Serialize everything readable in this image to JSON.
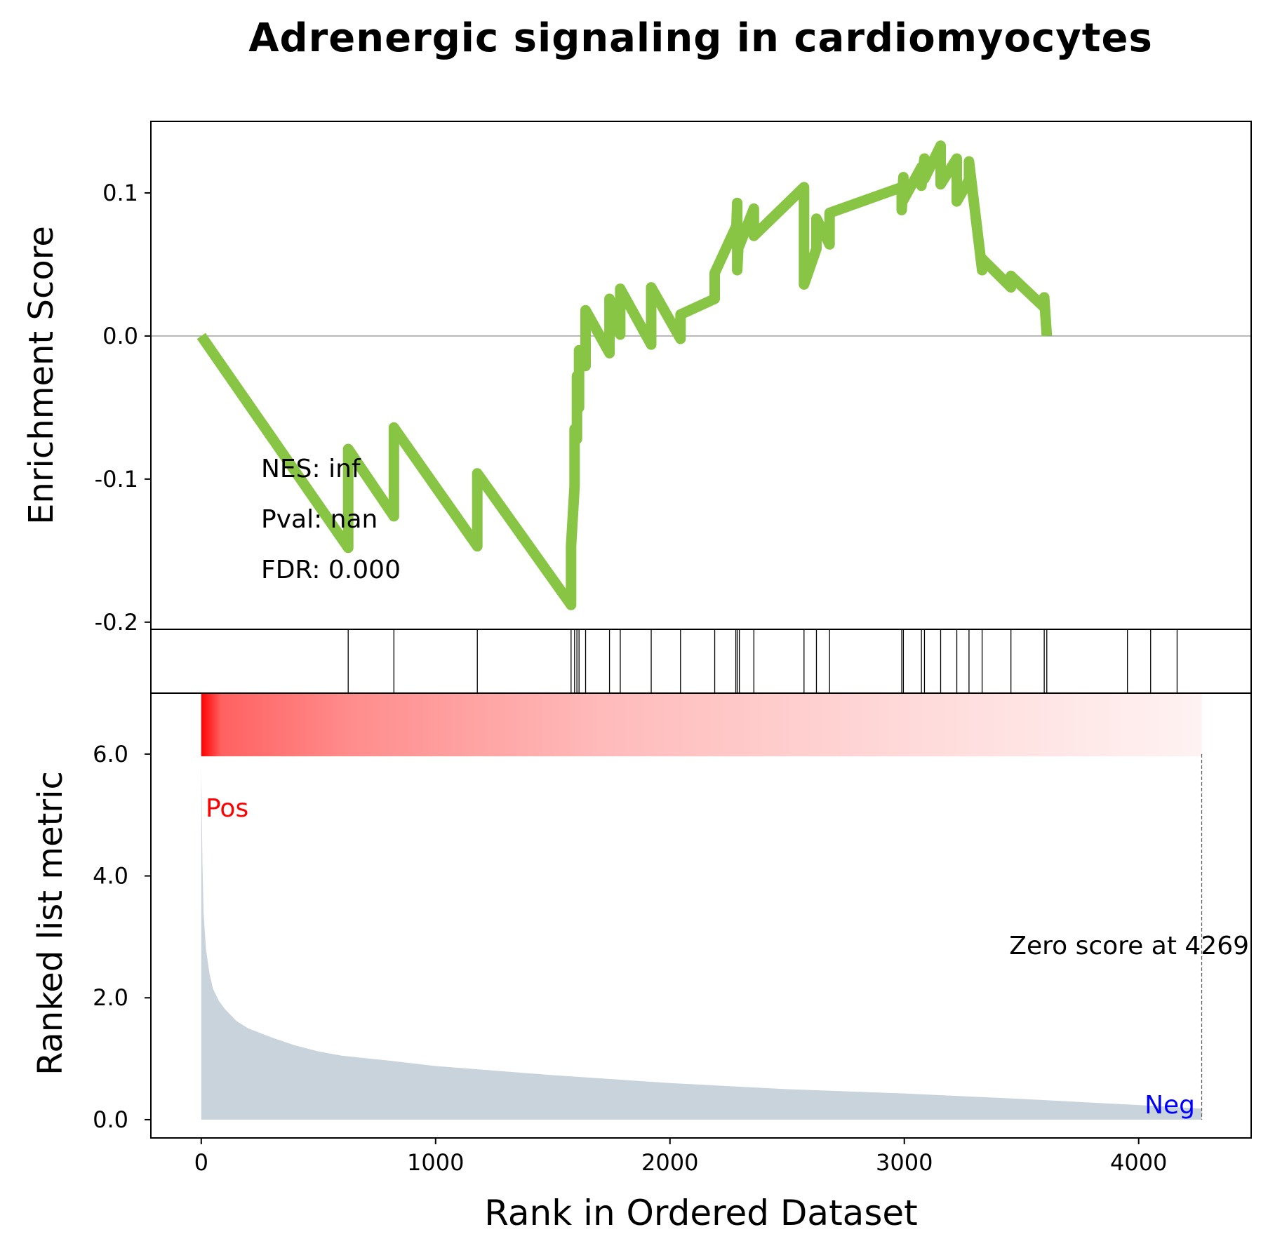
{
  "chart_data": {
    "type": "line",
    "title": "Adrenergic signaling in cardiomyocytes",
    "es_panel": {
      "ylabel": "Enrichment Score",
      "ylim": [
        -0.205,
        0.15
      ],
      "yticks": [
        -0.2,
        -0.1,
        0.0,
        0.1
      ],
      "ytick_labels": [
        "-0.2",
        "-0.1",
        "0.0",
        "0.1"
      ],
      "line_color": "#88c544",
      "zero_line": true,
      "stats": [
        "NES: inf",
        "Pval: nan",
        "FDR: 0.000"
      ],
      "hit_ranks": [
        627,
        822,
        1178,
        1578,
        1593,
        1603,
        1612,
        1640,
        1742,
        1788,
        1920,
        2045,
        2191,
        2281,
        2287,
        2296,
        2358,
        2572,
        2625,
        2681,
        2989,
        2996,
        3073,
        3086,
        3155,
        3224,
        3276,
        3332,
        3455,
        3597,
        3608,
        3952,
        4051,
        4164
      ],
      "peak_values": [
        -0.148,
        -0.079,
        -0.126,
        -0.064,
        -0.147,
        -0.096,
        -0.188,
        -0.147,
        -0.105,
        -0.065,
        -0.072,
        -0.028,
        -0.05,
        -0.01,
        -0.021,
        0.018,
        -0.012,
        0.026,
        0.001,
        0.033,
        -0.006,
        0.034,
        -0.002,
        0.015,
        0.026,
        0.044,
        0.076,
        0.064,
        0.093,
        0.046,
        0.076,
        0.063,
        0.089,
        0.07,
        0.104,
        0.036,
        0.061,
        0.082,
        0.064,
        0.086,
        0.104,
        0.088,
        0.111,
        0.095,
        0.118,
        0.105,
        0.124,
        0.11,
        0.133,
        0.106,
        0.124,
        0.094,
        0.109,
        0.122,
        0.046,
        0.054,
        0.034,
        0.042,
        0.02,
        0.027,
        0.0
      ]
    },
    "metric_panel": {
      "ylabel": "Ranked list metric",
      "xlabel": "Rank in Ordered Dataset",
      "ylim": [
        -0.3,
        7.0
      ],
      "yticks": [
        0,
        2,
        4,
        6
      ],
      "ytick_labels": [
        "0.0",
        "2.0",
        "4.0",
        "6.0"
      ],
      "xlim": [
        -215,
        4480
      ],
      "xticks": [
        0,
        1000,
        2000,
        3000,
        4000
      ],
      "xtick_labels": [
        "0",
        "1000",
        "2000",
        "3000",
        "4000"
      ],
      "fill_color": "#c8d3dc",
      "heat_color": "#ff0000",
      "pos_label": "Pos",
      "neg_label": "Neg",
      "pos_color": "#ff0000",
      "neg_color": "#0000ff",
      "zero_score_text": "Zero score at 4269",
      "zero_score_rank": 4269,
      "n_genes": 4270,
      "metric_curve": {
        "rank": [
          0,
          5,
          10,
          20,
          35,
          50,
          75,
          100,
          150,
          200,
          300,
          400,
          500,
          600,
          800,
          1000,
          1500,
          2000,
          2500,
          3000,
          3500,
          4000,
          4269
        ],
        "value": [
          5.8,
          4.2,
          3.4,
          2.8,
          2.4,
          2.15,
          1.95,
          1.82,
          1.62,
          1.5,
          1.35,
          1.22,
          1.12,
          1.05,
          0.97,
          0.88,
          0.73,
          0.6,
          0.5,
          0.43,
          0.34,
          0.24,
          0.18
        ]
      }
    }
  }
}
